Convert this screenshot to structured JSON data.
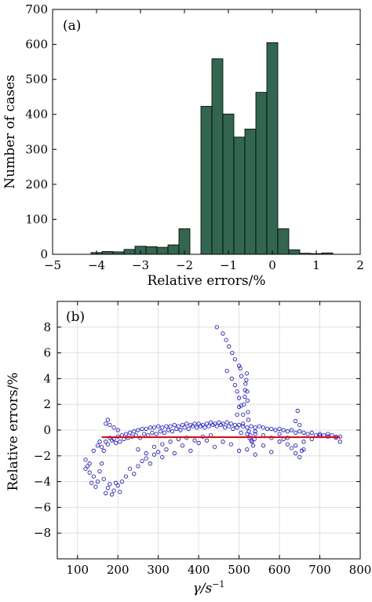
{
  "chart_data": [
    {
      "type": "bar",
      "panel_label": "(a)",
      "xlabel": "Relative errors/%",
      "ylabel": "Number of cases",
      "xlim": [
        -5,
        2
      ],
      "ylim": [
        0,
        700
      ],
      "xticks": [
        -5,
        -4,
        -3,
        -2,
        -1,
        0,
        1,
        2
      ],
      "yticks": [
        0,
        100,
        200,
        300,
        400,
        500,
        600,
        700
      ],
      "grid": false,
      "bar_color": "#336650",
      "bin_width": 0.25,
      "bins": [
        {
          "x": -4.0,
          "count": 5
        },
        {
          "x": -3.75,
          "count": 8
        },
        {
          "x": -3.5,
          "count": 7
        },
        {
          "x": -3.25,
          "count": 14
        },
        {
          "x": -3.0,
          "count": 23
        },
        {
          "x": -2.75,
          "count": 22
        },
        {
          "x": -2.5,
          "count": 20
        },
        {
          "x": -2.25,
          "count": 27
        },
        {
          "x": -2.0,
          "count": 73
        },
        {
          "x": -1.5,
          "count": 423
        },
        {
          "x": -1.25,
          "count": 559
        },
        {
          "x": -1.0,
          "count": 401
        },
        {
          "x": -0.75,
          "count": 335
        },
        {
          "x": -0.5,
          "count": 358
        },
        {
          "x": -0.25,
          "count": 463
        },
        {
          "x": 0.0,
          "count": 605
        },
        {
          "x": 0.25,
          "count": 73
        },
        {
          "x": 0.5,
          "count": 13
        },
        {
          "x": 0.75,
          "count": 3
        },
        {
          "x": 1.0,
          "count": 2
        },
        {
          "x": 1.25,
          "count": 4
        }
      ]
    },
    {
      "type": "scatter",
      "panel_label": "(b)",
      "xlabel": "γ/s",
      "xlabel_superscript": "−1",
      "ylabel": "Relative errors/%",
      "xlim": [
        50,
        800
      ],
      "ylim": [
        -10,
        10
      ],
      "xticks": [
        100,
        200,
        300,
        400,
        500,
        600,
        700,
        800
      ],
      "yticks": [
        -8,
        -6,
        -4,
        -2,
        0,
        2,
        4,
        6,
        8
      ],
      "grid": true,
      "marker_color": "#0000ff",
      "line_color": "#ff0000",
      "reference_line": {
        "x": [
          160,
          750
        ],
        "y": [
          -0.55,
          -0.55
        ]
      },
      "points": [
        [
          120,
          -2.3
        ],
        [
          125,
          -2.8
        ],
        [
          130,
          -3.3
        ],
        [
          135,
          -4.1
        ],
        [
          140,
          -3.6
        ],
        [
          145,
          -4.4
        ],
        [
          150,
          -4.0
        ],
        [
          155,
          -3.2
        ],
        [
          160,
          -2.6
        ],
        [
          165,
          -3.8
        ],
        [
          170,
          -4.9
        ],
        [
          175,
          -4.5
        ],
        [
          180,
          -4.2
        ],
        [
          185,
          -5.0
        ],
        [
          190,
          -4.7
        ],
        [
          195,
          -4.1
        ],
        [
          200,
          -4.3
        ],
        [
          205,
          -4.8
        ],
        [
          210,
          -4.0
        ],
        [
          220,
          -3.6
        ],
        [
          230,
          -3.0
        ],
        [
          240,
          -3.4
        ],
        [
          250,
          -2.8
        ],
        [
          260,
          -2.4
        ],
        [
          270,
          -2.2
        ],
        [
          280,
          -2.6
        ],
        [
          290,
          -1.9
        ],
        [
          300,
          -1.7
        ],
        [
          310,
          -2.1
        ],
        [
          320,
          -1.5
        ],
        [
          340,
          -1.8
        ],
        [
          360,
          -1.2
        ],
        [
          380,
          -1.6
        ],
        [
          400,
          -1.0
        ],
        [
          420,
          -0.8
        ],
        [
          440,
          -1.3
        ],
        [
          460,
          -0.9
        ],
        [
          480,
          -1.1
        ],
        [
          500,
          -1.6
        ],
        [
          520,
          -1.5
        ],
        [
          540,
          -1.9
        ],
        [
          560,
          -1.2
        ],
        [
          580,
          -1.7
        ],
        [
          600,
          -0.9
        ],
        [
          620,
          -0.6
        ],
        [
          640,
          -1.2
        ],
        [
          660,
          -1.5
        ],
        [
          680,
          -0.7
        ],
        [
          700,
          -0.4
        ],
        [
          720,
          -0.3
        ],
        [
          740,
          -0.5
        ],
        [
          750,
          -0.9
        ],
        [
          160,
          -1.3
        ],
        [
          170,
          -0.9
        ],
        [
          180,
          -0.6
        ],
        [
          190,
          -0.7
        ],
        [
          200,
          -0.5
        ],
        [
          210,
          -0.4
        ],
        [
          220,
          -0.3
        ],
        [
          230,
          -0.2
        ],
        [
          240,
          -0.1
        ],
        [
          250,
          0.0
        ],
        [
          260,
          0.1
        ],
        [
          270,
          0.1
        ],
        [
          280,
          0.2
        ],
        [
          290,
          0.2
        ],
        [
          300,
          0.3
        ],
        [
          310,
          0.2
        ],
        [
          320,
          0.3
        ],
        [
          330,
          0.3
        ],
        [
          340,
          0.4
        ],
        [
          350,
          0.3
        ],
        [
          360,
          0.4
        ],
        [
          370,
          0.5
        ],
        [
          380,
          0.4
        ],
        [
          390,
          0.5
        ],
        [
          400,
          0.5
        ],
        [
          410,
          0.4
        ],
        [
          420,
          0.5
        ],
        [
          430,
          0.6
        ],
        [
          440,
          0.5
        ],
        [
          450,
          0.6
        ],
        [
          460,
          0.5
        ],
        [
          470,
          0.6
        ],
        [
          480,
          0.5
        ],
        [
          490,
          0.4
        ],
        [
          500,
          0.4
        ],
        [
          510,
          0.3
        ],
        [
          520,
          0.2
        ],
        [
          530,
          0.3
        ],
        [
          540,
          0.2
        ],
        [
          550,
          0.3
        ],
        [
          560,
          0.2
        ],
        [
          570,
          0.1
        ],
        [
          580,
          0.1
        ],
        [
          590,
          0.0
        ],
        [
          600,
          0.1
        ],
        [
          610,
          0.0
        ],
        [
          620,
          -0.1
        ],
        [
          630,
          0.0
        ],
        [
          640,
          -0.2
        ],
        [
          650,
          -0.1
        ],
        [
          660,
          -0.2
        ],
        [
          670,
          -0.3
        ],
        [
          680,
          -0.2
        ],
        [
          690,
          -0.4
        ],
        [
          700,
          -0.3
        ],
        [
          710,
          -0.4
        ],
        [
          720,
          -0.5
        ],
        [
          730,
          -0.4
        ],
        [
          740,
          -0.6
        ],
        [
          750,
          -0.5
        ],
        [
          165,
          -1.6
        ],
        [
          175,
          -1.1
        ],
        [
          185,
          -0.8
        ],
        [
          195,
          -1.0
        ],
        [
          205,
          -0.9
        ],
        [
          215,
          -0.7
        ],
        [
          225,
          -0.6
        ],
        [
          235,
          -0.5
        ],
        [
          245,
          -0.4
        ],
        [
          255,
          -0.6
        ],
        [
          265,
          -0.3
        ],
        [
          275,
          -0.4
        ],
        [
          285,
          -0.2
        ],
        [
          295,
          -0.3
        ],
        [
          305,
          -0.1
        ],
        [
          315,
          -0.2
        ],
        [
          325,
          0.0
        ],
        [
          335,
          -0.1
        ],
        [
          345,
          0.1
        ],
        [
          355,
          0.0
        ],
        [
          365,
          0.2
        ],
        [
          375,
          0.1
        ],
        [
          385,
          0.3
        ],
        [
          395,
          0.2
        ],
        [
          405,
          0.3
        ],
        [
          415,
          0.2
        ],
        [
          425,
          0.3
        ],
        [
          435,
          0.4
        ],
        [
          445,
          0.3
        ],
        [
          455,
          0.4
        ],
        [
          465,
          0.2
        ],
        [
          475,
          0.3
        ],
        [
          485,
          0.1
        ],
        [
          495,
          0.2
        ],
        [
          505,
          -0.2
        ],
        [
          510,
          0.5
        ],
        [
          510,
          1.2
        ],
        [
          512,
          2.0
        ],
        [
          514,
          2.6
        ],
        [
          515,
          3.1
        ],
        [
          516,
          3.6
        ],
        [
          518,
          3.9
        ],
        [
          519,
          4.4
        ],
        [
          520,
          3.0
        ],
        [
          521,
          2.3
        ],
        [
          522,
          1.4
        ],
        [
          523,
          0.8
        ],
        [
          524,
          -0.1
        ],
        [
          526,
          -0.6
        ],
        [
          528,
          -0.4
        ],
        [
          530,
          -0.8
        ],
        [
          532,
          -0.9
        ],
        [
          535,
          -1.2
        ],
        [
          538,
          -0.7
        ],
        [
          540,
          -0.3
        ],
        [
          500,
          5.0
        ],
        [
          503,
          4.8
        ],
        [
          506,
          4.2
        ],
        [
          500,
          1.8
        ],
        [
          495,
          1.2
        ],
        [
          445,
          8.0
        ],
        [
          460,
          7.5
        ],
        [
          468,
          7.0
        ],
        [
          475,
          6.5
        ],
        [
          483,
          6.0
        ],
        [
          490,
          5.5
        ],
        [
          470,
          4.6
        ],
        [
          482,
          4.0
        ],
        [
          490,
          3.5
        ],
        [
          495,
          3.0
        ],
        [
          500,
          2.5
        ],
        [
          505,
          1.9
        ],
        [
          120,
          -3.0
        ],
        [
          130,
          -2.6
        ],
        [
          140,
          -1.6
        ],
        [
          150,
          -1.2
        ],
        [
          155,
          -0.9
        ],
        [
          170,
          0.5
        ],
        [
          175,
          0.8
        ],
        [
          180,
          0.4
        ],
        [
          190,
          0.2
        ],
        [
          200,
          0.0
        ],
        [
          250,
          -1.5
        ],
        [
          270,
          -1.8
        ],
        [
          290,
          -1.3
        ],
        [
          310,
          -1.1
        ],
        [
          330,
          -0.9
        ],
        [
          350,
          -0.7
        ],
        [
          370,
          -0.6
        ],
        [
          390,
          -0.8
        ],
        [
          410,
          -0.5
        ],
        [
          430,
          -0.4
        ],
        [
          520,
          -0.3
        ],
        [
          540,
          -0.1
        ],
        [
          560,
          -0.4
        ],
        [
          580,
          -0.6
        ],
        [
          600,
          -0.3
        ],
        [
          610,
          -0.7
        ],
        [
          620,
          -1.1
        ],
        [
          630,
          -1.4
        ],
        [
          640,
          -1.8
        ],
        [
          650,
          -2.1
        ],
        [
          655,
          -1.6
        ],
        [
          660,
          -0.9
        ],
        [
          645,
          1.5
        ],
        [
          640,
          0.7
        ],
        [
          650,
          0.4
        ]
      ]
    }
  ]
}
